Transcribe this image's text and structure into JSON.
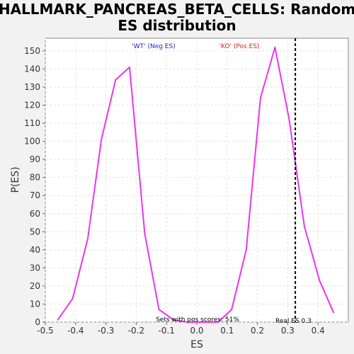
{
  "chart_data": {
    "type": "line",
    "title_line1": "HALLMARK_PANCREAS_BETA_CELLS: Random",
    "title_line2": "ES distribution",
    "xlabel": "ES",
    "ylabel": "P(ES)",
    "xlim": [
      -0.5,
      0.5
    ],
    "ylim": [
      0,
      157
    ],
    "xticks": [
      -0.5,
      -0.4,
      -0.3,
      -0.2,
      -0.1,
      0.0,
      0.1,
      0.2,
      0.3,
      0.4
    ],
    "xtick_labels": [
      "-0.5",
      "-0.4",
      "-0.3",
      "-0.2",
      "-0.1",
      "0.0",
      "0.1",
      "0.2",
      "0.3",
      "0.4"
    ],
    "yticks": [
      0,
      10,
      20,
      30,
      40,
      50,
      60,
      70,
      80,
      90,
      100,
      110,
      120,
      130,
      140,
      150
    ],
    "grid": true,
    "series": [
      {
        "color": "#ee33ee",
        "x": [
          -0.46,
          -0.41,
          -0.36,
          -0.315,
          -0.268,
          -0.222,
          -0.172,
          -0.125,
          -0.075,
          -0.03,
          0.02,
          0.07,
          0.115,
          0.163,
          0.21,
          0.258,
          0.305,
          0.355,
          0.405,
          0.452
        ],
        "y": [
          1,
          13,
          46,
          101,
          134,
          141,
          49,
          7,
          1,
          0,
          0,
          0,
          7,
          40,
          124,
          152,
          112,
          53,
          23,
          5
        ]
      }
    ],
    "real_es": 0.325,
    "legend_neg": "'WT' (Neg ES)",
    "legend_pos": "'KO' (Pos ES)",
    "legend_neg_color": "#2222cc",
    "legend_pos_color": "#dd2222",
    "annotation_sets": "Sets with pos scores: 51%",
    "annotation_real": "Real ES 0.3"
  }
}
